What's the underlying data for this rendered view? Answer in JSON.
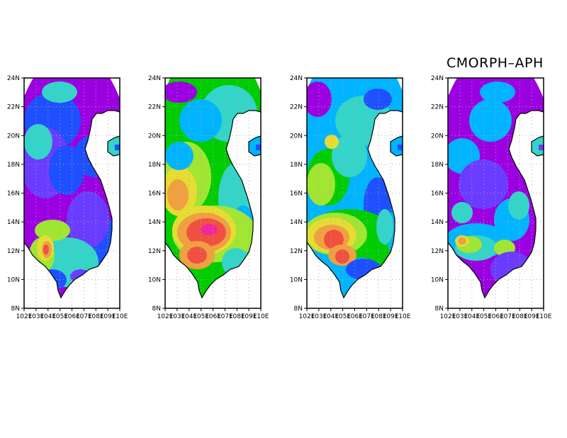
{
  "figure": {
    "title": "CMORPH–APH",
    "latitude_labels": [
      "24N",
      "22N",
      "20N",
      "18N",
      "16N",
      "14N",
      "12N",
      "10N",
      "8N"
    ],
    "longitude_labels": [
      "102E",
      "103E",
      "104E",
      "105E",
      "106E",
      "107E",
      "108E",
      "109E",
      "110E"
    ],
    "colors": {
      "purple": "#9b00e0",
      "violet": "#6a3cff",
      "blue": "#1e50ff",
      "light_blue": "#00b4ff",
      "cyan": "#35d4c8",
      "green": "#00cc00",
      "yellow_green": "#a0e632",
      "yellow": "#e6dc32",
      "orange": "#f0a040",
      "red": "#f05040",
      "magenta": "#f028a0"
    },
    "panels": [
      {
        "id": "panel-1",
        "dominant": [
          "purple",
          "blue",
          "violet",
          "cyan"
        ],
        "hot": [
          "yellow_green",
          "yellow",
          "orange",
          "red",
          "magenta"
        ]
      },
      {
        "id": "panel-2",
        "dominant": [
          "green",
          "cyan",
          "light_blue"
        ],
        "hot": [
          "yellow",
          "orange",
          "red",
          "magenta"
        ]
      },
      {
        "id": "panel-3",
        "dominant": [
          "light_blue",
          "cyan",
          "green"
        ],
        "hot": [
          "yellow",
          "orange",
          "red"
        ]
      },
      {
        "id": "panel-4",
        "dominant": [
          "purple",
          "violet",
          "light_blue"
        ],
        "hot": [
          "cyan",
          "yellow_green",
          "yellow",
          "red"
        ]
      }
    ]
  }
}
